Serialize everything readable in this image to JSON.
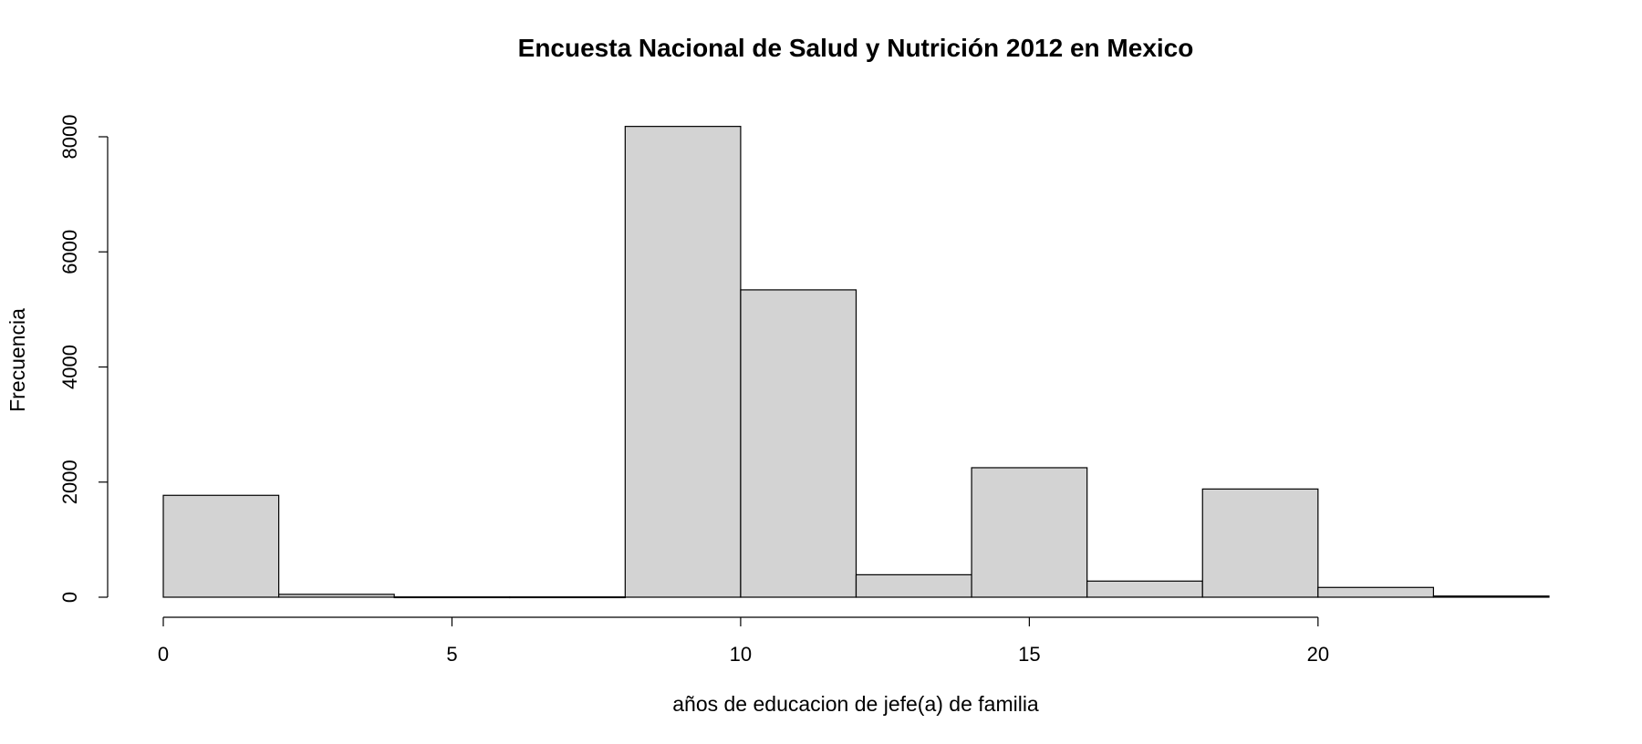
{
  "chart_data": {
    "type": "bar",
    "title": "Encuesta Nacional de Salud y Nutrición 2012 en Mexico",
    "xlabel": "años de educacion de jefe(a) de familia",
    "ylabel": "Frecuencia",
    "bins": [
      {
        "x0": 0,
        "x1": 2,
        "count": 1770
      },
      {
        "x0": 2,
        "x1": 4,
        "count": 50
      },
      {
        "x0": 4,
        "x1": 6,
        "count": 5
      },
      {
        "x0": 6,
        "x1": 8,
        "count": 5
      },
      {
        "x0": 8,
        "x1": 10,
        "count": 8180
      },
      {
        "x0": 10,
        "x1": 12,
        "count": 5340
      },
      {
        "x0": 12,
        "x1": 14,
        "count": 390
      },
      {
        "x0": 14,
        "x1": 16,
        "count": 2250
      },
      {
        "x0": 16,
        "x1": 18,
        "count": 280
      },
      {
        "x0": 18,
        "x1": 20,
        "count": 1880
      },
      {
        "x0": 20,
        "x1": 22,
        "count": 170
      },
      {
        "x0": 22,
        "x1": 24,
        "count": 20
      }
    ],
    "x_ticks": [
      0,
      5,
      10,
      15,
      20
    ],
    "y_ticks": [
      0,
      2000,
      4000,
      6000,
      8000
    ],
    "xlim": [
      0,
      24
    ],
    "ylim": [
      0,
      8000
    ],
    "grid": false,
    "colors": {
      "bar_fill": "#d3d3d3",
      "bar_stroke": "#000000"
    }
  }
}
